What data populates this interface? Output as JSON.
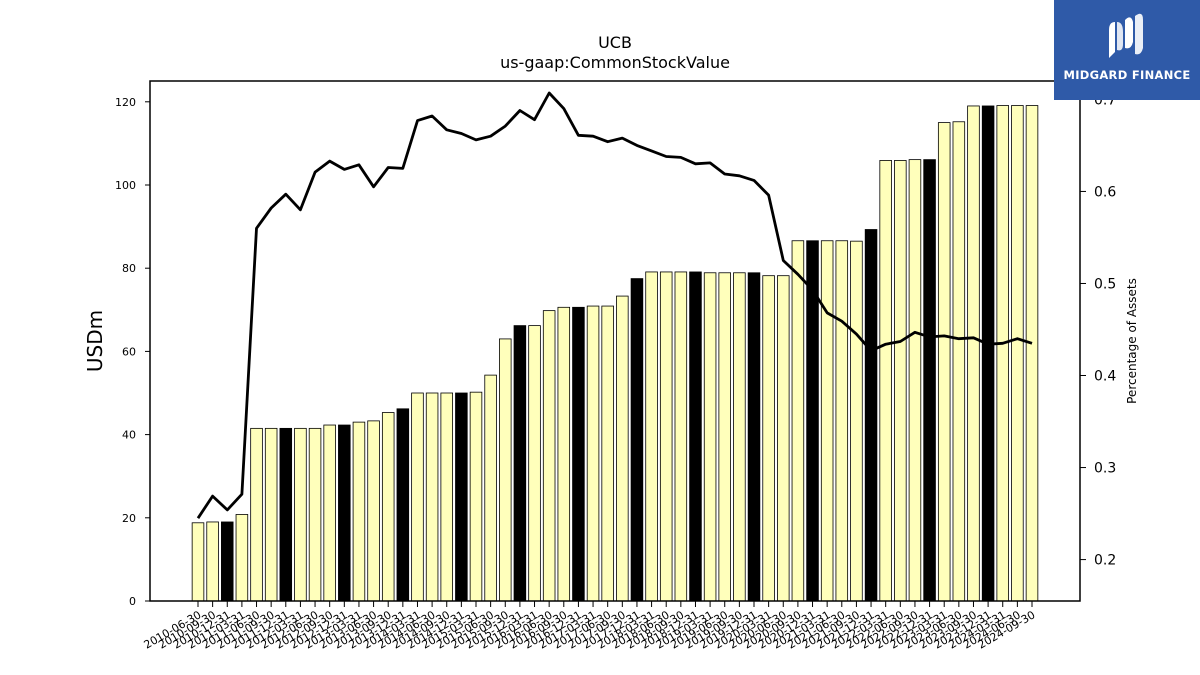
{
  "chart_data": {
    "type": "bar+line",
    "title": "UCB",
    "subtitle": "us-gaap:CommonStockValue",
    "ylabel": "USDm",
    "y2label": "Percentage of Assets",
    "ylim": [
      0,
      125
    ],
    "y2lim": [
      0.155,
      0.72
    ],
    "yticks": [
      0,
      20,
      40,
      60,
      80,
      100,
      120
    ],
    "y2ticks": [
      0.2,
      0.3,
      0.4,
      0.5,
      0.6,
      0.7
    ],
    "categories": [
      "2010-06-30",
      "2010-09-30",
      "2010-12-31",
      "2011-03-31",
      "2011-06-30",
      "2011-09-30",
      "2011-12-31",
      "2012-03-31",
      "2012-06-30",
      "2012-09-30",
      "2012-12-31",
      "2013-03-31",
      "2013-06-30",
      "2013-09-30",
      "2013-12-31",
      "2014-03-31",
      "2014-06-30",
      "2014-09-30",
      "2014-12-31",
      "2015-03-31",
      "2015-06-30",
      "2015-09-30",
      "2015-12-31",
      "2016-03-31",
      "2016-06-30",
      "2016-09-30",
      "2016-12-31",
      "2017-03-31",
      "2017-06-30",
      "2017-09-30",
      "2017-12-31",
      "2018-03-31",
      "2018-06-30",
      "2018-09-30",
      "2018-12-31",
      "2019-03-31",
      "2019-06-30",
      "2019-09-30",
      "2019-12-31",
      "2020-03-31",
      "2020-06-30",
      "2020-09-30",
      "2020-12-31",
      "2021-03-31",
      "2021-06-30",
      "2021-09-30",
      "2021-12-31",
      "2022-03-31",
      "2022-06-30",
      "2022-09-30",
      "2022-12-31",
      "2023-03-31",
      "2023-06-30",
      "2023-09-30",
      "2023-12-31",
      "2024-03-31",
      "2024-06-30",
      "2024-09-30"
    ],
    "series": [
      {
        "kind": "bar",
        "values": [
          18.8,
          19.0,
          19.0,
          20.8,
          41.5,
          41.5,
          41.5,
          41.5,
          41.5,
          42.3,
          42.3,
          43.0,
          43.3,
          45.3,
          46.2,
          50.0,
          50.0,
          50.0,
          50.0,
          50.2,
          54.3,
          63.0,
          66.2,
          66.2,
          69.8,
          70.6,
          70.6,
          70.9,
          70.9,
          73.3,
          77.5,
          79.1,
          79.1,
          79.1,
          79.1,
          78.9,
          78.9,
          78.9,
          78.9,
          78.2,
          78.2,
          86.6,
          86.6,
          86.6,
          86.6,
          86.5,
          89.3,
          105.9,
          105.9,
          106.1,
          106.1,
          115.0,
          115.2,
          119.0,
          119.0,
          119.1,
          119.1,
          119.1
        ],
        "highlight_color": "#000000",
        "color": "#ffffbb",
        "highlighted": [
          "2010-12-31",
          "2011-12-31",
          "2012-12-31",
          "2013-12-31",
          "2014-12-31",
          "2015-12-31",
          "2016-12-31",
          "2017-12-31",
          "2018-12-31",
          "2019-12-31",
          "2020-12-31",
          "2021-12-31",
          "2022-12-31",
          "2023-12-31"
        ]
      },
      {
        "kind": "line",
        "axis": "right",
        "color": "#000000",
        "values": [
          0.245,
          0.269,
          0.254,
          0.271,
          0.56,
          0.582,
          0.597,
          0.58,
          0.621,
          0.633,
          0.624,
          0.629,
          0.605,
          0.626,
          0.625,
          0.677,
          0.682,
          0.667,
          0.663,
          0.656,
          0.66,
          0.671,
          0.688,
          0.678,
          0.707,
          0.69,
          0.661,
          0.66,
          0.654,
          0.658,
          0.65,
          0.644,
          0.638,
          0.637,
          0.63,
          0.631,
          0.619,
          0.617,
          0.612,
          0.596,
          0.525,
          0.51,
          0.493,
          0.468,
          0.459,
          0.445,
          0.427,
          0.434,
          0.437,
          0.447,
          0.442,
          0.443,
          0.44,
          0.441,
          0.434,
          0.435,
          0.44,
          0.435
        ]
      }
    ]
  },
  "logo": {
    "text": "MIDGARD FINANCE"
  }
}
